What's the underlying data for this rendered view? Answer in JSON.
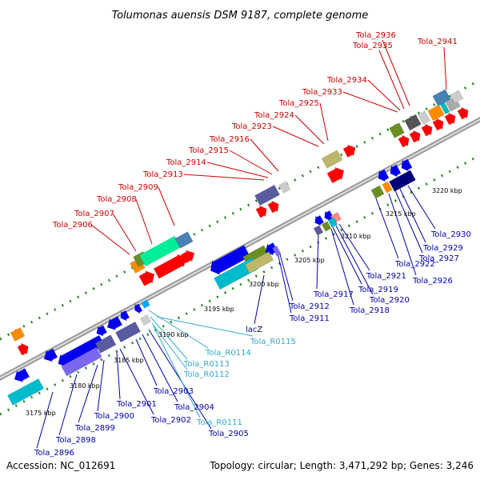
{
  "title": "Tolumonas auensis DSM 9187, complete genome",
  "footer": {
    "accession": "Accession: NC_012691",
    "summary": "Topology: circular; Length: 3,471,292 bp; Genes: 3,246"
  },
  "ruler_ticks": [
    "3175 kbp",
    "3180 kbp",
    "3185 kbp",
    "3190 kbp",
    "3195 kbp",
    "3200 kbp",
    "3205 kbp",
    "3210 kbp",
    "3215 kbp",
    "3220 kbp"
  ],
  "upper_labels": [
    "Tola_2906",
    "Tola_2907",
    "Tola_2908",
    "Tola_2909",
    "Tola_2913",
    "Tola_2914",
    "Tola_2915",
    "Tola_2916",
    "Tola_2923",
    "Tola_2924",
    "Tola_2925",
    "Tola_2933",
    "Tola_2934",
    "Tola_2935",
    "Tola_2936",
    "Tola_2941"
  ],
  "lower_labels": [
    "Tola_2896",
    "Tola_2898",
    "Tola_2899",
    "Tola_2900",
    "Tola_2901",
    "Tola_2902",
    "Tola_2903",
    "Tola_2904",
    "Tola_2905",
    "Tola_R0111",
    "Tola_R0112",
    "Tola_R0113",
    "Tola_R0114",
    "Tola_R0115",
    "lacZ",
    "Tola_2911",
    "Tola_2912",
    "Tola_2917",
    "Tola_2918",
    "Tola_2919",
    "Tola_2920",
    "Tola_2921",
    "Tola_2922",
    "Tola_2926",
    "Tola_2927",
    "Tola_2929",
    "Tola_2930"
  ],
  "colors": {
    "forward_gene": "#ff0000",
    "reverse_gene": "#0000ff",
    "upper_label": "#cc0000",
    "lower_label": "#0000aa",
    "rna_label": "#33aacc",
    "backbone": "#999999",
    "tick_dots": "#228822"
  }
}
